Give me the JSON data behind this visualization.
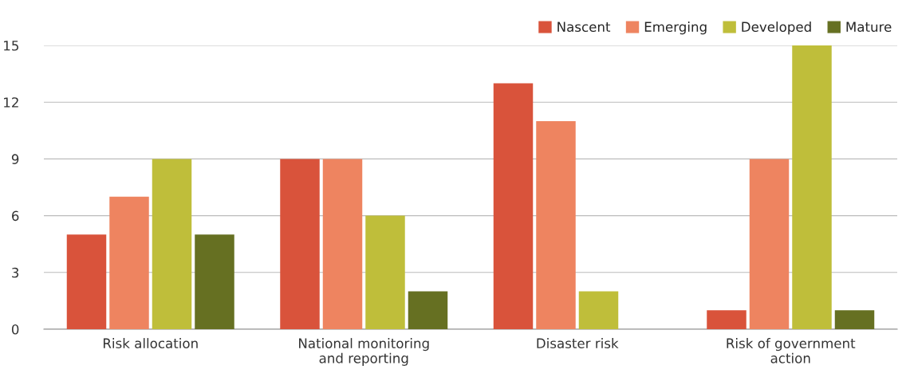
{
  "chart_data": {
    "type": "bar",
    "categories": [
      "Risk allocation",
      "National monitoring\nand reporting",
      "Disaster risk",
      "Risk of government\naction"
    ],
    "series": [
      {
        "name": "Nascent",
        "color": "#d9533b",
        "values": [
          5,
          9,
          13,
          1
        ]
      },
      {
        "name": "Emerging",
        "color": "#ee8460",
        "values": [
          7,
          9,
          11,
          9
        ]
      },
      {
        "name": "Developed",
        "color": "#bfbe3a",
        "values": [
          9,
          6,
          2,
          15
        ]
      },
      {
        "name": "Mature",
        "color": "#667022",
        "values": [
          5,
          2,
          0,
          1
        ]
      }
    ],
    "ylim": [
      0,
      15
    ],
    "yticks": [
      0,
      3,
      6,
      9,
      12,
      15
    ],
    "grid": "y",
    "legend": "top right"
  }
}
